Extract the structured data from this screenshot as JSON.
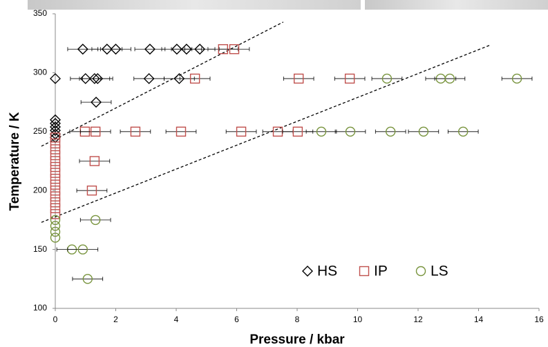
{
  "chart_data": {
    "type": "scatter",
    "x_label": "Pressure / kbar",
    "y_label": "Temperature / K",
    "xlim": [
      0,
      16
    ],
    "ylim": [
      100,
      350
    ],
    "xticks": [
      0,
      2,
      4,
      6,
      8,
      10,
      12,
      14,
      16
    ],
    "yticks": [
      100,
      150,
      200,
      250,
      300,
      350
    ],
    "legend": "lower right",
    "series": [
      {
        "name": "HS",
        "color": "#000000",
        "marker": "diamond",
        "x": [
          0.91,
          1.71,
          2.0,
          3.13,
          4.02,
          4.34,
          4.78,
          0,
          1.0,
          1.3,
          1.4,
          3.1,
          4.1,
          1.35,
          0,
          0,
          0,
          0,
          0,
          0
        ],
        "y": [
          320,
          320,
          320,
          320,
          320,
          320,
          320,
          295,
          295,
          295,
          295,
          295,
          295,
          275,
          260,
          257,
          254,
          251,
          248,
          245
        ],
        "xerr": [
          0.5,
          0.5,
          0.5,
          0.5,
          0.5,
          0.5,
          0.5,
          null,
          0.5,
          0.5,
          0.5,
          0.5,
          0.5,
          0.5,
          null,
          null,
          null,
          null,
          null,
          null
        ]
      },
      {
        "name": "IP",
        "color": "#c0504d",
        "marker": "square",
        "x": [
          5.55,
          5.92,
          4.62,
          8.05,
          9.74,
          0.98,
          1.33,
          2.65,
          4.16,
          6.15,
          7.36,
          8.02,
          1.3,
          1.21,
          0,
          0,
          0,
          0,
          0,
          0,
          0,
          0,
          0,
          0,
          0,
          0,
          0,
          0
        ],
        "y": [
          320,
          320,
          295,
          295,
          295,
          250,
          250,
          250,
          250,
          250,
          250,
          250,
          225,
          200,
          245,
          240,
          235,
          230,
          225,
          220,
          215,
          210,
          205,
          200,
          195,
          190,
          185,
          180
        ],
        "xerr": [
          0.5,
          0.5,
          0.5,
          0.5,
          0.5,
          0.5,
          0.5,
          0.5,
          0.5,
          0.5,
          0.5,
          0.5,
          0.5,
          0.5,
          null,
          null,
          null,
          null,
          null,
          null,
          null,
          null,
          null,
          null,
          null,
          null,
          null,
          null
        ]
      },
      {
        "name": "LS",
        "color": "#77933c",
        "marker": "circle",
        "x": [
          10.97,
          12.75,
          13.05,
          15.27,
          8.8,
          9.76,
          11.09,
          12.18,
          13.49,
          1.33,
          0,
          0,
          0,
          0,
          0.55,
          0.91,
          1.07
        ],
        "y": [
          295,
          295,
          295,
          295,
          250,
          250,
          250,
          250,
          250,
          175,
          175,
          170,
          165,
          160,
          150,
          150,
          125
        ],
        "xerr": [
          0.5,
          0.5,
          0.5,
          0.5,
          0.5,
          0.5,
          0.5,
          0.5,
          0.5,
          0.5,
          null,
          null,
          null,
          null,
          0.5,
          0.5,
          0.5
        ]
      }
    ],
    "lines": [
      {
        "x": [
          -0.46,
          7.54
        ],
        "y": [
          237.6,
          343
        ]
      },
      {
        "x": [
          -0.46,
          14.4
        ],
        "y": [
          173,
          323.6
        ]
      }
    ]
  }
}
